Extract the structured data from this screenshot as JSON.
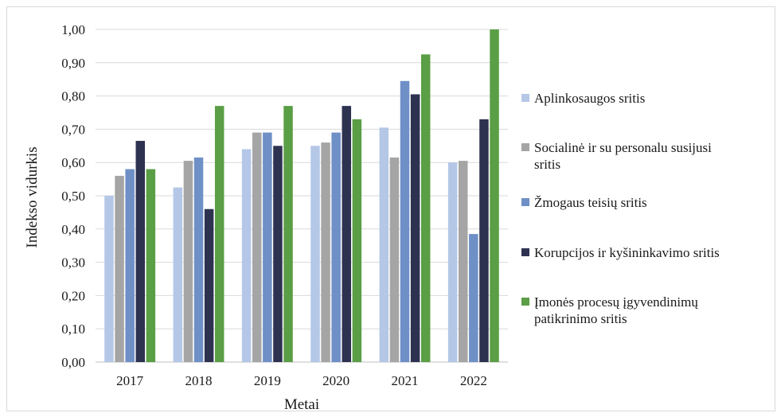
{
  "chart_data": {
    "type": "bar",
    "categories": [
      "2017",
      "2018",
      "2019",
      "2020",
      "2021",
      "2022"
    ],
    "series": [
      {
        "name": "Aplinkosaugos sritis",
        "color": "#b4c7e7",
        "values": [
          0.5,
          0.525,
          0.64,
          0.65,
          0.705,
          0.6
        ]
      },
      {
        "name": "Socialinė ir su personalu susijusi sritis",
        "color": "#a5a5a5",
        "values": [
          0.56,
          0.605,
          0.69,
          0.66,
          0.615,
          0.605
        ]
      },
      {
        "name": "Žmogaus teisių sritis",
        "color": "#6f8fc7",
        "values": [
          0.58,
          0.615,
          0.69,
          0.69,
          0.845,
          0.385
        ]
      },
      {
        "name": "Korupcijos ir kyšininkavimo sritis",
        "color": "#2e3251",
        "values": [
          0.665,
          0.46,
          0.65,
          0.77,
          0.805,
          0.73
        ]
      },
      {
        "name": "Įmonės procesų įgyvendinimų patikrinimo sritis",
        "color": "#5a9e45",
        "values": [
          0.58,
          0.77,
          0.77,
          0.73,
          0.925,
          1.0
        ]
      }
    ],
    "legend_lines": [
      [
        "Aplinkosaugos sritis"
      ],
      [
        "Socialinė ir su personalu susijusi",
        "sritis"
      ],
      [
        "Žmogaus teisių sritis"
      ],
      [
        "Korupcijos ir kyšininkavimo sritis"
      ],
      [
        "Įmonės procesų įgyvendinimų",
        "patikrinimo sritis"
      ]
    ],
    "y_ticks": [
      "0,00",
      "0,10",
      "0,20",
      "0,30",
      "0,40",
      "0,50",
      "0,60",
      "0,70",
      "0,80",
      "0,90",
      "1,00"
    ],
    "ylim": [
      0,
      1
    ],
    "xlabel": "Metai",
    "ylabel": "Indekso vidurkis",
    "grid": true,
    "legend_position": "right"
  }
}
